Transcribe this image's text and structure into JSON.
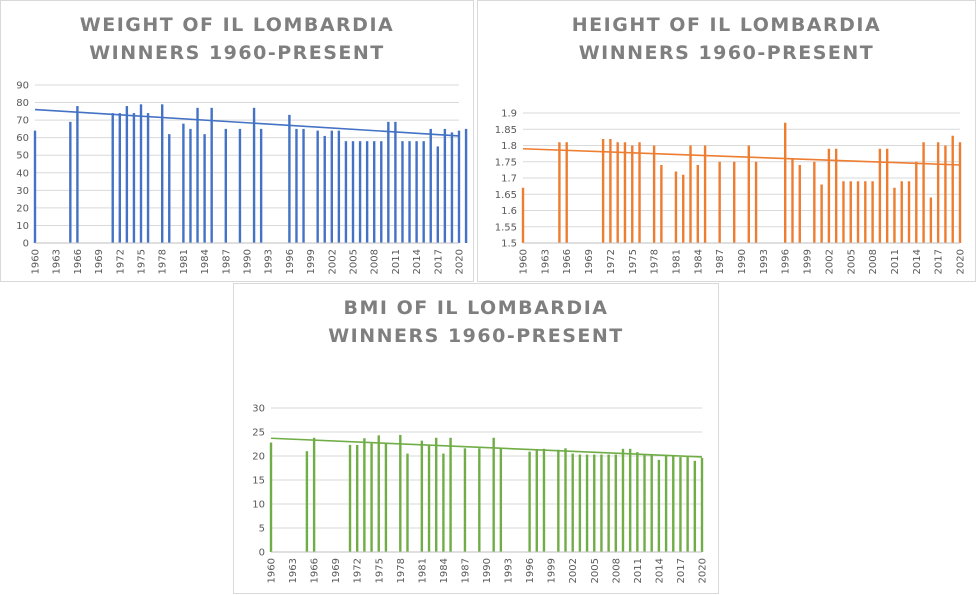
{
  "chart_data": [
    {
      "type": "bar",
      "title_lines": [
        "WEIGHT OF IL LOMBARDIA",
        "WINNERS 1960-PRESENT"
      ],
      "color": "#4472c4",
      "ylim": [
        0,
        90
      ],
      "yticks": [
        0,
        10,
        20,
        30,
        40,
        50,
        60,
        70,
        80,
        90
      ],
      "xlim": [
        1960,
        2020
      ],
      "xticks": [
        1960,
        1963,
        1966,
        1969,
        1972,
        1975,
        1978,
        1981,
        1984,
        1987,
        1990,
        1993,
        1996,
        1999,
        2002,
        2005,
        2008,
        2011,
        2014,
        2017,
        2020
      ],
      "trendline": {
        "start": [
          1960,
          76
        ],
        "end": [
          2020,
          61
        ]
      },
      "points": [
        [
          1960,
          64
        ],
        [
          1965,
          69
        ],
        [
          1966,
          78
        ],
        [
          1971,
          74
        ],
        [
          1972,
          74
        ],
        [
          1973,
          78
        ],
        [
          1974,
          74
        ],
        [
          1975,
          79
        ],
        [
          1976,
          74
        ],
        [
          1978,
          79
        ],
        [
          1979,
          62
        ],
        [
          1981,
          68
        ],
        [
          1982,
          65
        ],
        [
          1983,
          77
        ],
        [
          1984,
          62
        ],
        [
          1985,
          77
        ],
        [
          1987,
          65
        ],
        [
          1989,
          65
        ],
        [
          1991,
          77
        ],
        [
          1992,
          65
        ],
        [
          1996,
          73
        ],
        [
          1997,
          65
        ],
        [
          1998,
          65
        ],
        [
          2000,
          64
        ],
        [
          2001,
          61
        ],
        [
          2002,
          64
        ],
        [
          2003,
          64
        ],
        [
          2004,
          58
        ],
        [
          2005,
          58
        ],
        [
          2006,
          58
        ],
        [
          2007,
          58
        ],
        [
          2008,
          58
        ],
        [
          2009,
          58
        ],
        [
          2010,
          69
        ],
        [
          2011,
          69
        ],
        [
          2012,
          58
        ],
        [
          2013,
          58
        ],
        [
          2014,
          58
        ],
        [
          2015,
          58
        ],
        [
          2016,
          65
        ],
        [
          2017,
          55
        ],
        [
          2018,
          65
        ],
        [
          2019,
          63
        ],
        [
          2020,
          64
        ],
        [
          2021,
          65
        ]
      ]
    },
    {
      "type": "bar",
      "title_lines": [
        "HEIGHT OF IL LOMBARDIA",
        "WINNERS 1960-PRESENT"
      ],
      "color": "#ed7d31",
      "ylim": [
        1.5,
        1.9
      ],
      "yticks": [
        "1.5",
        "1.55",
        "1.6",
        "1.65",
        "1.7",
        "1.75",
        "1.8",
        "1.85",
        "1.9"
      ],
      "xlim": [
        1960,
        2020
      ],
      "xticks": [
        1960,
        1963,
        1966,
        1969,
        1972,
        1975,
        1978,
        1981,
        1984,
        1987,
        1990,
        1993,
        1996,
        1999,
        2002,
        2005,
        2008,
        2011,
        2014,
        2017,
        2020
      ],
      "trendline": {
        "start": [
          1960,
          1.79
        ],
        "end": [
          2020,
          1.74
        ]
      },
      "points": [
        [
          1960,
          1.67
        ],
        [
          1965,
          1.81
        ],
        [
          1966,
          1.81
        ],
        [
          1971,
          1.82
        ],
        [
          1972,
          1.82
        ],
        [
          1973,
          1.81
        ],
        [
          1974,
          1.81
        ],
        [
          1975,
          1.8
        ],
        [
          1976,
          1.81
        ],
        [
          1978,
          1.8
        ],
        [
          1979,
          1.74
        ],
        [
          1981,
          1.72
        ],
        [
          1982,
          1.71
        ],
        [
          1983,
          1.8
        ],
        [
          1984,
          1.74
        ],
        [
          1985,
          1.8
        ],
        [
          1987,
          1.75
        ],
        [
          1989,
          1.75
        ],
        [
          1991,
          1.8
        ],
        [
          1992,
          1.75
        ],
        [
          1996,
          1.87
        ],
        [
          1997,
          1.76
        ],
        [
          1998,
          1.74
        ],
        [
          2000,
          1.75
        ],
        [
          2001,
          1.68
        ],
        [
          2002,
          1.79
        ],
        [
          2003,
          1.79
        ],
        [
          2004,
          1.69
        ],
        [
          2005,
          1.69
        ],
        [
          2006,
          1.69
        ],
        [
          2007,
          1.69
        ],
        [
          2008,
          1.69
        ],
        [
          2009,
          1.79
        ],
        [
          2010,
          1.79
        ],
        [
          2011,
          1.67
        ],
        [
          2012,
          1.69
        ],
        [
          2013,
          1.69
        ],
        [
          2014,
          1.75
        ],
        [
          2015,
          1.81
        ],
        [
          2016,
          1.64
        ],
        [
          2017,
          1.81
        ],
        [
          2018,
          1.8
        ],
        [
          2019,
          1.83
        ],
        [
          2020,
          1.81
        ]
      ]
    },
    {
      "type": "bar",
      "title_lines": [
        "BMI OF IL LOMBARDIA",
        "WINNERS 1960-PRESENT"
      ],
      "color": "#70ad47",
      "ylim": [
        0,
        30
      ],
      "yticks": [
        0,
        5,
        10,
        15,
        20,
        25,
        30
      ],
      "xlim": [
        1960,
        2020
      ],
      "xticks": [
        1960,
        1963,
        1966,
        1969,
        1972,
        1975,
        1978,
        1981,
        1984,
        1987,
        1990,
        1993,
        1996,
        1999,
        2002,
        2005,
        2008,
        2011,
        2014,
        2017,
        2020
      ],
      "trendline": {
        "start": [
          1960,
          23.7
        ],
        "end": [
          2020,
          19.8
        ]
      },
      "points": [
        [
          1960,
          22.8
        ],
        [
          1965,
          21.0
        ],
        [
          1966,
          23.8
        ],
        [
          1971,
          22.3
        ],
        [
          1972,
          22.3
        ],
        [
          1973,
          23.7
        ],
        [
          1974,
          22.6
        ],
        [
          1975,
          24.3
        ],
        [
          1976,
          22.6
        ],
        [
          1978,
          24.4
        ],
        [
          1979,
          20.5
        ],
        [
          1981,
          23.2
        ],
        [
          1982,
          22.2
        ],
        [
          1983,
          23.8
        ],
        [
          1984,
          20.5
        ],
        [
          1985,
          23.8
        ],
        [
          1987,
          21.6
        ],
        [
          1989,
          21.6
        ],
        [
          1991,
          23.8
        ],
        [
          1992,
          21.5
        ],
        [
          1996,
          20.9
        ],
        [
          1997,
          21.3
        ],
        [
          1998,
          21.5
        ],
        [
          2000,
          21.3
        ],
        [
          2001,
          21.6
        ],
        [
          2002,
          20.5
        ],
        [
          2003,
          20.3
        ],
        [
          2004,
          20.3
        ],
        [
          2005,
          20.3
        ],
        [
          2006,
          20.3
        ],
        [
          2007,
          20.3
        ],
        [
          2008,
          20.3
        ],
        [
          2009,
          21.5
        ],
        [
          2010,
          21.5
        ],
        [
          2011,
          20.8
        ],
        [
          2012,
          20.3
        ],
        [
          2013,
          20.3
        ],
        [
          2014,
          19.2
        ],
        [
          2015,
          20.2
        ],
        [
          2016,
          20.2
        ],
        [
          2017,
          19.8
        ],
        [
          2018,
          19.8
        ],
        [
          2019,
          19.0
        ],
        [
          2020,
          19.6
        ]
      ]
    }
  ]
}
